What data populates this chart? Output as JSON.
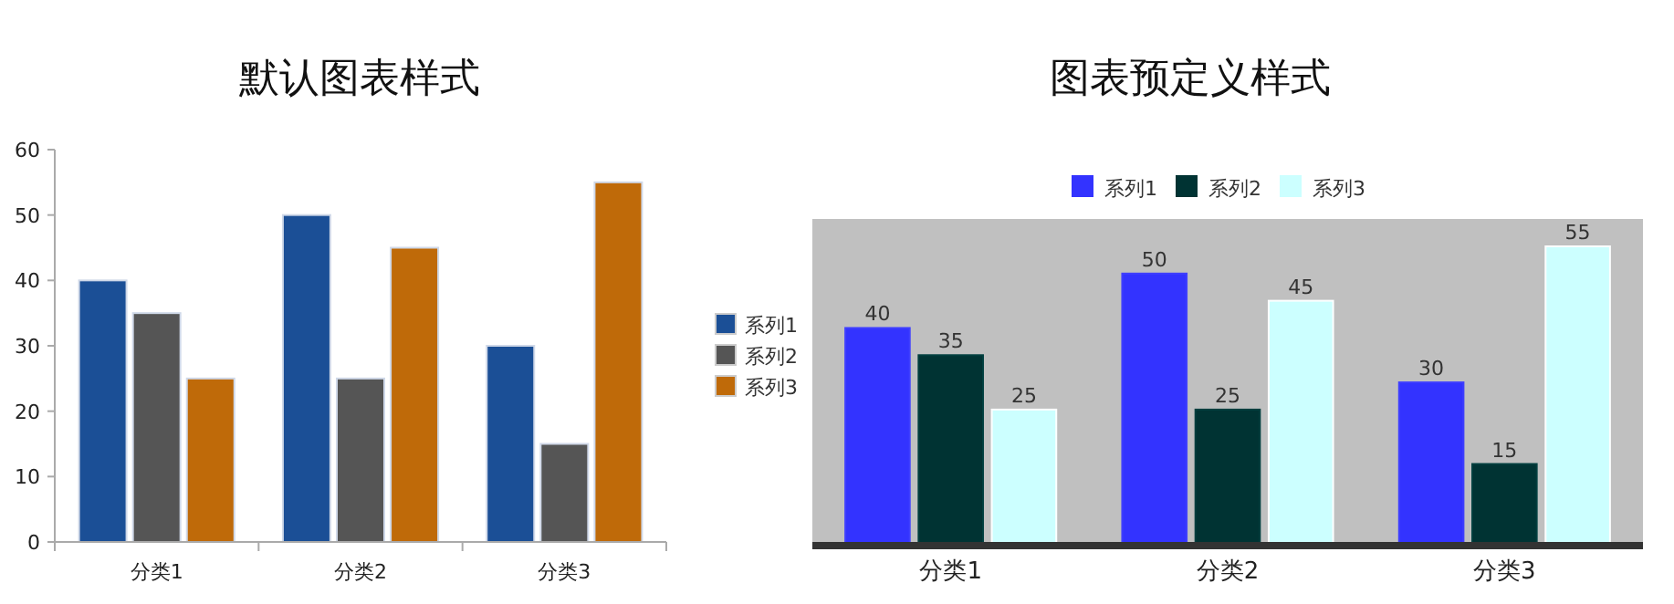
{
  "chart_data": [
    {
      "type": "bar",
      "title": "默认图表样式",
      "categories": [
        "分类1",
        "分类2",
        "分类3"
      ],
      "series": [
        {
          "name": "系列1",
          "color": "#1b4f96",
          "values": [
            40,
            50,
            30
          ]
        },
        {
          "name": "系列2",
          "color": "#555555",
          "values": [
            35,
            25,
            15
          ]
        },
        {
          "name": "系列3",
          "color": "#bf6a09",
          "values": [
            25,
            45,
            55
          ]
        }
      ],
      "ylim": [
        0,
        60
      ],
      "yticks": [
        0,
        10,
        20,
        30,
        40,
        50,
        60
      ],
      "grid": false,
      "legend": "right"
    },
    {
      "type": "bar",
      "title": "图表预定义样式",
      "categories": [
        "分类1",
        "分类2",
        "分类3"
      ],
      "series": [
        {
          "name": "系列1",
          "color": "#3333ff",
          "values": [
            40,
            50,
            30
          ]
        },
        {
          "name": "系列2",
          "color": "#003333",
          "values": [
            35,
            25,
            15
          ]
        },
        {
          "name": "系列3",
          "color": "#ccffff",
          "values": [
            25,
            45,
            55
          ]
        }
      ],
      "tick_labels": "x",
      "data_labels": true,
      "grid": false,
      "legend": "top"
    }
  ]
}
